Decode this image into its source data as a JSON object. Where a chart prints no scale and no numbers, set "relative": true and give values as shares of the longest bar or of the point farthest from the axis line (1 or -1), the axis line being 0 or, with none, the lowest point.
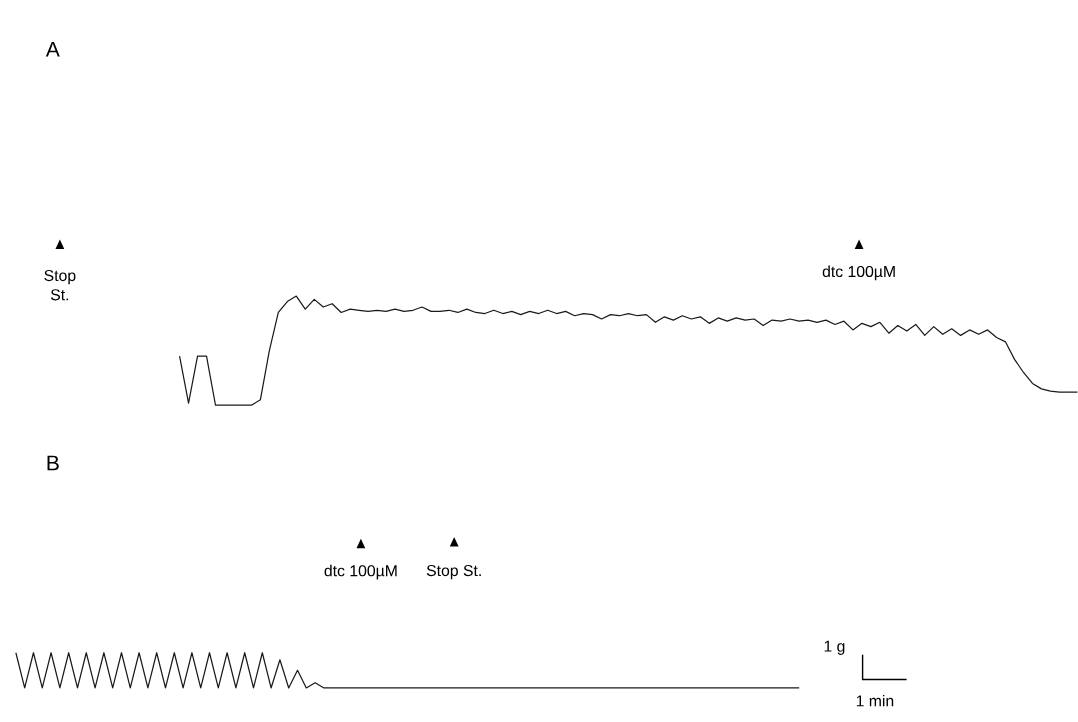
{
  "chart_data": [
    {
      "type": "line",
      "title": "A",
      "relative": true,
      "color": "#1a1a1a",
      "categories": [
        null,
        null,
        null,
        null,
        null,
        null,
        null,
        null,
        null,
        null,
        null,
        null,
        null,
        null,
        null,
        null,
        null,
        null,
        null,
        null,
        null,
        null,
        null,
        null,
        null,
        null,
        null,
        null,
        null,
        null,
        null,
        null,
        null,
        null,
        null,
        null,
        null,
        null,
        null,
        null,
        null,
        null,
        null,
        null,
        null,
        null,
        null,
        null,
        null,
        null,
        null,
        null,
        null,
        null,
        null,
        null,
        null,
        null,
        null,
        null,
        null,
        null,
        null,
        null,
        null,
        null,
        null,
        null,
        null,
        null,
        null,
        null,
        null,
        null,
        null,
        null,
        null,
        null,
        null,
        null,
        null,
        null,
        null,
        null,
        null,
        null,
        null,
        null,
        null,
        null,
        null,
        null,
        null,
        null,
        null,
        null,
        null,
        null,
        null,
        null,
        null
      ],
      "values": [
        0.45,
        0.02,
        0.45,
        0.45,
        0,
        0,
        0,
        0,
        0,
        0.05,
        0.5,
        0.85,
        0.95,
        1.0,
        0.88,
        0.97,
        0.9,
        0.93,
        0.85,
        0.88,
        0.87,
        0.86,
        0.87,
        0.86,
        0.88,
        0.86,
        0.87,
        0.9,
        0.86,
        0.86,
        0.87,
        0.85,
        0.88,
        0.85,
        0.84,
        0.87,
        0.84,
        0.86,
        0.83,
        0.86,
        0.84,
        0.87,
        0.84,
        0.86,
        0.82,
        0.84,
        0.83,
        0.79,
        0.83,
        0.82,
        0.84,
        0.82,
        0.83,
        0.76,
        0.81,
        0.78,
        0.82,
        0.79,
        0.81,
        0.75,
        0.8,
        0.77,
        0.8,
        0.78,
        0.79,
        0.73,
        0.78,
        0.77,
        0.79,
        0.77,
        0.78,
        0.76,
        0.78,
        0.74,
        0.77,
        0.69,
        0.75,
        0.72,
        0.76,
        0.66,
        0.73,
        0.68,
        0.74,
        0.64,
        0.72,
        0.65,
        0.7,
        0.64,
        0.69,
        0.65,
        0.69,
        0.62,
        0.58,
        0.42,
        0.3,
        0.2,
        0.15,
        0.13,
        0.12,
        0.12,
        0.12
      ],
      "annotations": [
        "Stop St.",
        "dtc 100µM"
      ]
    },
    {
      "type": "line",
      "title": "B",
      "relative": true,
      "color": "#1a1a1a",
      "categories": [
        null,
        null,
        null,
        null,
        null,
        null,
        null,
        null,
        null,
        null,
        null,
        null,
        null,
        null,
        null,
        null,
        null,
        null,
        null,
        null,
        null,
        null,
        null,
        null,
        null,
        null,
        null,
        null,
        null,
        null,
        null,
        null,
        null,
        null,
        null,
        null,
        null,
        null,
        null,
        null,
        null,
        null,
        null,
        null,
        null,
        null,
        null,
        null,
        null,
        null,
        null,
        null,
        null,
        null,
        null,
        null,
        null,
        null,
        null,
        null,
        null,
        null,
        null,
        null,
        null,
        null,
        null,
        null,
        null,
        null,
        null,
        null,
        null,
        null,
        null,
        null,
        null,
        null,
        null,
        null,
        null,
        null,
        null,
        null,
        null,
        null,
        null,
        null,
        null,
        null
      ],
      "values": [
        1,
        0,
        1,
        0,
        1,
        0,
        1,
        0,
        1,
        0,
        1,
        0,
        1,
        0,
        1,
        0,
        1,
        0,
        1,
        0,
        1,
        0,
        1,
        0,
        1,
        0,
        1,
        0,
        1,
        0,
        0.8,
        0,
        0.5,
        0,
        0.15,
        0,
        0,
        0,
        0,
        0,
        0,
        0,
        0,
        0,
        0,
        0,
        0,
        0,
        0,
        0,
        0,
        0,
        0,
        0,
        0,
        0,
        0,
        0,
        0,
        0,
        0,
        0,
        0,
        0,
        0,
        0,
        0,
        0,
        0,
        0,
        0,
        0,
        0,
        0,
        0,
        0,
        0,
        0,
        0,
        0,
        0,
        0,
        0,
        0,
        0,
        0,
        0,
        0,
        0,
        0
      ],
      "annotations": [
        "dtc 100µM",
        "Stop St.",
        "1 g",
        "1 min"
      ]
    }
  ]
}
